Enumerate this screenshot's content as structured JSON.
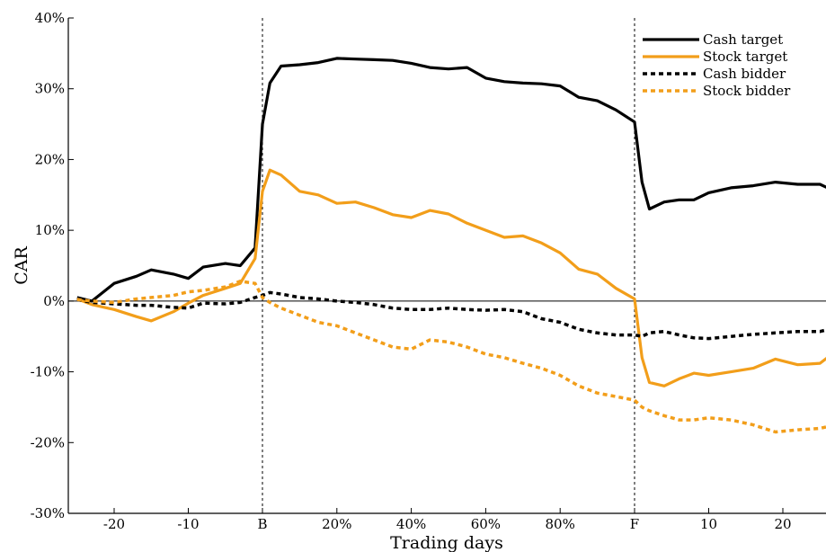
{
  "chart_data": {
    "type": "line",
    "xlabel": "Trading days",
    "ylabel": "CAR",
    "ylim": [
      -30,
      40
    ],
    "y_ticks": [
      -30,
      -20,
      -10,
      0,
      10,
      20,
      30,
      40
    ],
    "y_tick_labels": [
      "-30%",
      "-20%",
      "-10%",
      "0%",
      "10%",
      "20%",
      "30%",
      "40%"
    ],
    "x_tick_labels": [
      "-20",
      "-10",
      "B",
      "20%",
      "40%",
      "60%",
      "80%",
      "F",
      "10",
      "20"
    ],
    "markers": [
      "B",
      "F"
    ],
    "legend_position": "top-right",
    "series": [
      {
        "name": "Cash target",
        "color": "#000000",
        "style": "solid",
        "points": [
          [
            "-25",
            0.5
          ],
          [
            "-23",
            0
          ],
          [
            "-20",
            2.5
          ],
          [
            "-17",
            3.5
          ],
          [
            "-15",
            4.4
          ],
          [
            "-12",
            3.8
          ],
          [
            "-10",
            3.2
          ],
          [
            "-8",
            4.8
          ],
          [
            "-5",
            5.3
          ],
          [
            "-3",
            5.0
          ],
          [
            "-1",
            7.5
          ],
          [
            "B",
            25
          ],
          [
            "2%",
            30.8
          ],
          [
            "5%",
            33.2
          ],
          [
            "10%",
            33.4
          ],
          [
            "15%",
            33.7
          ],
          [
            "20%",
            34.3
          ],
          [
            "25%",
            34.2
          ],
          [
            "30%",
            34.1
          ],
          [
            "35%",
            34.0
          ],
          [
            "40%",
            33.6
          ],
          [
            "45%",
            33.0
          ],
          [
            "50%",
            32.8
          ],
          [
            "55%",
            33.0
          ],
          [
            "60%",
            31.5
          ],
          [
            "65%",
            31.0
          ],
          [
            "70%",
            30.8
          ],
          [
            "75%",
            30.7
          ],
          [
            "80%",
            30.4
          ],
          [
            "85%",
            28.8
          ],
          [
            "90%",
            28.3
          ],
          [
            "95%",
            27.0
          ],
          [
            "F",
            25.3
          ],
          [
            "1",
            16.8
          ],
          [
            "2",
            13.0
          ],
          [
            "4",
            14.0
          ],
          [
            "6",
            14.3
          ],
          [
            "8",
            14.3
          ],
          [
            "10",
            15.3
          ],
          [
            "13",
            16.0
          ],
          [
            "16",
            16.3
          ],
          [
            "19",
            16.8
          ],
          [
            "22",
            16.5
          ],
          [
            "25",
            16.5
          ],
          [
            "27",
            15.5
          ]
        ]
      },
      {
        "name": "Stock target",
        "color": "#F29E1A",
        "style": "solid",
        "points": [
          [
            "-25",
            0.3
          ],
          [
            "-23",
            -0.5
          ],
          [
            "-20",
            -1.2
          ],
          [
            "-17",
            -2.2
          ],
          [
            "-15",
            -2.8
          ],
          [
            "-12",
            -1.5
          ],
          [
            "-10",
            -0.3
          ],
          [
            "-8",
            0.8
          ],
          [
            "-5",
            1.8
          ],
          [
            "-3",
            2.5
          ],
          [
            "-1",
            6.0
          ],
          [
            "B",
            15.5
          ],
          [
            "2%",
            18.5
          ],
          [
            "5%",
            17.8
          ],
          [
            "10%",
            15.5
          ],
          [
            "15%",
            15.0
          ],
          [
            "20%",
            13.8
          ],
          [
            "25%",
            14.0
          ],
          [
            "30%",
            13.2
          ],
          [
            "35%",
            12.2
          ],
          [
            "40%",
            11.8
          ],
          [
            "45%",
            12.8
          ],
          [
            "50%",
            12.3
          ],
          [
            "55%",
            11.0
          ],
          [
            "60%",
            10.0
          ],
          [
            "65%",
            9.0
          ],
          [
            "70%",
            9.2
          ],
          [
            "75%",
            8.2
          ],
          [
            "80%",
            6.8
          ],
          [
            "85%",
            4.5
          ],
          [
            "90%",
            3.8
          ],
          [
            "95%",
            1.8
          ],
          [
            "F",
            0.3
          ],
          [
            "1",
            -8.0
          ],
          [
            "2",
            -11.5
          ],
          [
            "4",
            -12.0
          ],
          [
            "6",
            -11.0
          ],
          [
            "8",
            -10.2
          ],
          [
            "10",
            -10.5
          ],
          [
            "13",
            -10.0
          ],
          [
            "16",
            -9.5
          ],
          [
            "19",
            -8.2
          ],
          [
            "22",
            -9.0
          ],
          [
            "25",
            -8.8
          ],
          [
            "27",
            -7.2
          ]
        ]
      },
      {
        "name": "Cash bidder",
        "color": "#000000",
        "style": "dotted",
        "points": [
          [
            "-25",
            0.2
          ],
          [
            "-23",
            -0.2
          ],
          [
            "-20",
            -0.4
          ],
          [
            "-17",
            -0.6
          ],
          [
            "-15",
            -0.6
          ],
          [
            "-12",
            -0.9
          ],
          [
            "-10",
            -1.0
          ],
          [
            "-8",
            -0.3
          ],
          [
            "-5",
            -0.4
          ],
          [
            "-3",
            -0.2
          ],
          [
            "-1",
            0.5
          ],
          [
            "B",
            0.8
          ],
          [
            "2%",
            1.2
          ],
          [
            "5%",
            1.0
          ],
          [
            "10%",
            0.5
          ],
          [
            "15%",
            0.3
          ],
          [
            "20%",
            0.0
          ],
          [
            "25%",
            -0.2
          ],
          [
            "30%",
            -0.5
          ],
          [
            "35%",
            -1.0
          ],
          [
            "40%",
            -1.2
          ],
          [
            "45%",
            -1.2
          ],
          [
            "50%",
            -1.0
          ],
          [
            "55%",
            -1.2
          ],
          [
            "60%",
            -1.3
          ],
          [
            "65%",
            -1.2
          ],
          [
            "70%",
            -1.5
          ],
          [
            "75%",
            -2.5
          ],
          [
            "80%",
            -3.0
          ],
          [
            "85%",
            -4.0
          ],
          [
            "90%",
            -4.5
          ],
          [
            "95%",
            -4.8
          ],
          [
            "F",
            -4.8
          ],
          [
            "1",
            -5.0
          ],
          [
            "2",
            -4.5
          ],
          [
            "4",
            -4.3
          ],
          [
            "6",
            -4.8
          ],
          [
            "8",
            -5.2
          ],
          [
            "10",
            -5.3
          ],
          [
            "13",
            -5.0
          ],
          [
            "16",
            -4.7
          ],
          [
            "19",
            -4.5
          ],
          [
            "22",
            -4.3
          ],
          [
            "25",
            -4.3
          ],
          [
            "27",
            -3.8
          ]
        ]
      },
      {
        "name": "Stock bidder",
        "color": "#F29E1A",
        "style": "dotted",
        "points": [
          [
            "-25",
            0.2
          ],
          [
            "-23",
            0.0
          ],
          [
            "-20",
            -0.2
          ],
          [
            "-17",
            0.3
          ],
          [
            "-15",
            0.5
          ],
          [
            "-12",
            0.8
          ],
          [
            "-10",
            1.3
          ],
          [
            "-8",
            1.5
          ],
          [
            "-5",
            2.0
          ],
          [
            "-3",
            2.8
          ],
          [
            "-1",
            2.5
          ],
          [
            "B",
            0.5
          ],
          [
            "2%",
            -0.2
          ],
          [
            "5%",
            -1.0
          ],
          [
            "10%",
            -2.0
          ],
          [
            "15%",
            -3.0
          ],
          [
            "20%",
            -3.5
          ],
          [
            "25%",
            -4.5
          ],
          [
            "30%",
            -5.5
          ],
          [
            "35%",
            -6.5
          ],
          [
            "40%",
            -6.8
          ],
          [
            "45%",
            -5.5
          ],
          [
            "50%",
            -5.8
          ],
          [
            "55%",
            -6.5
          ],
          [
            "60%",
            -7.5
          ],
          [
            "65%",
            -8.0
          ],
          [
            "70%",
            -8.8
          ],
          [
            "75%",
            -9.5
          ],
          [
            "80%",
            -10.5
          ],
          [
            "85%",
            -12.0
          ],
          [
            "90%",
            -13.0
          ],
          [
            "95%",
            -13.5
          ],
          [
            "F",
            -14.0
          ],
          [
            "1",
            -15.0
          ],
          [
            "2",
            -15.5
          ],
          [
            "4",
            -16.2
          ],
          [
            "6",
            -16.8
          ],
          [
            "8",
            -16.8
          ],
          [
            "10",
            -16.5
          ],
          [
            "13",
            -16.8
          ],
          [
            "16",
            -17.5
          ],
          [
            "19",
            -18.5
          ],
          [
            "22",
            -18.2
          ],
          [
            "25",
            -18.0
          ],
          [
            "27",
            -17.5
          ]
        ]
      }
    ]
  }
}
